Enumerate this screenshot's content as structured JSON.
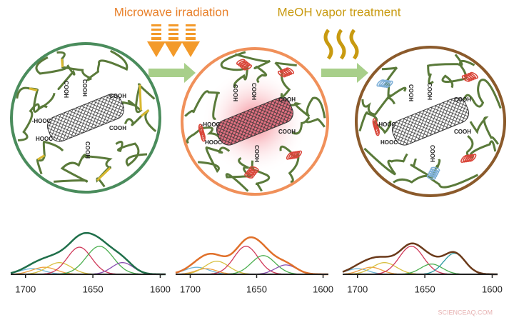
{
  "header": {
    "step1": "Microwave irradiation",
    "step2": "MeOH vapor treatment"
  },
  "panels": [
    {
      "labels": [
        "COOH",
        "COOH",
        "COOH",
        "-HOOC",
        "HOOC",
        "COOH",
        "COOH"
      ],
      "spectrum": {
        "xlim": [
          1711,
          1596
        ],
        "ylim": [
          0,
          1.1
        ],
        "xticks": [
          1700,
          1650,
          1600
        ],
        "envelope_color": "#1f6f4a",
        "peaks": [
          {
            "center": 1695,
            "height": 0.12,
            "width": 9,
            "color": "#6fb6d8"
          },
          {
            "center": 1686,
            "height": 0.15,
            "width": 9,
            "color": "#f0a040"
          },
          {
            "center": 1675,
            "height": 0.25,
            "width": 9,
            "color": "#d8c040"
          },
          {
            "center": 1660,
            "height": 0.58,
            "width": 9,
            "color": "#d03a5a"
          },
          {
            "center": 1645,
            "height": 0.6,
            "width": 10,
            "color": "#4caf50"
          },
          {
            "center": 1628,
            "height": 0.25,
            "width": 8,
            "color": "#8a4fb0"
          }
        ]
      }
    },
    {
      "labels": [
        "COOH",
        "COOH",
        "COOH",
        "-HOOC",
        "HOOC",
        "COOH",
        "COOH"
      ],
      "spectrum": {
        "xlim": [
          1711,
          1596
        ],
        "ylim": [
          0,
          1.1
        ],
        "xticks": [
          1700,
          1650,
          1600
        ],
        "envelope_color": "#e0702a",
        "peaks": [
          {
            "center": 1695,
            "height": 0.15,
            "width": 9,
            "color": "#6fb6d8"
          },
          {
            "center": 1688,
            "height": 0.12,
            "width": 8,
            "color": "#f0a040"
          },
          {
            "center": 1680,
            "height": 0.28,
            "width": 9,
            "color": "#d8c040"
          },
          {
            "center": 1658,
            "height": 0.6,
            "width": 9,
            "color": "#d03a5a"
          },
          {
            "center": 1645,
            "height": 0.4,
            "width": 9,
            "color": "#4caf50"
          },
          {
            "center": 1628,
            "height": 0.2,
            "width": 8,
            "color": "#8a4fb0"
          }
        ]
      }
    },
    {
      "labels": [
        "COOH",
        "COOH",
        "COOH",
        "-HOOC",
        "HOOC",
        "COOH",
        "COOH"
      ],
      "spectrum": {
        "xlim": [
          1711,
          1596
        ],
        "ylim": [
          0,
          1.1
        ],
        "xticks": [
          1700,
          1650,
          1600
        ],
        "envelope_color": "#6b3a1a",
        "peaks": [
          {
            "center": 1700,
            "height": 0.12,
            "width": 8,
            "color": "#6fb6d8"
          },
          {
            "center": 1690,
            "height": 0.15,
            "width": 8,
            "color": "#f0a040"
          },
          {
            "center": 1680,
            "height": 0.25,
            "width": 9,
            "color": "#d8c040"
          },
          {
            "center": 1660,
            "height": 0.6,
            "width": 9,
            "color": "#d03a5a"
          },
          {
            "center": 1645,
            "height": 0.22,
            "width": 8,
            "color": "#4caf50"
          },
          {
            "center": 1628,
            "height": 0.45,
            "width": 8,
            "color": "#2a9aa0"
          }
        ]
      }
    }
  ],
  "watermark": "SCIENCEAQ.COM"
}
